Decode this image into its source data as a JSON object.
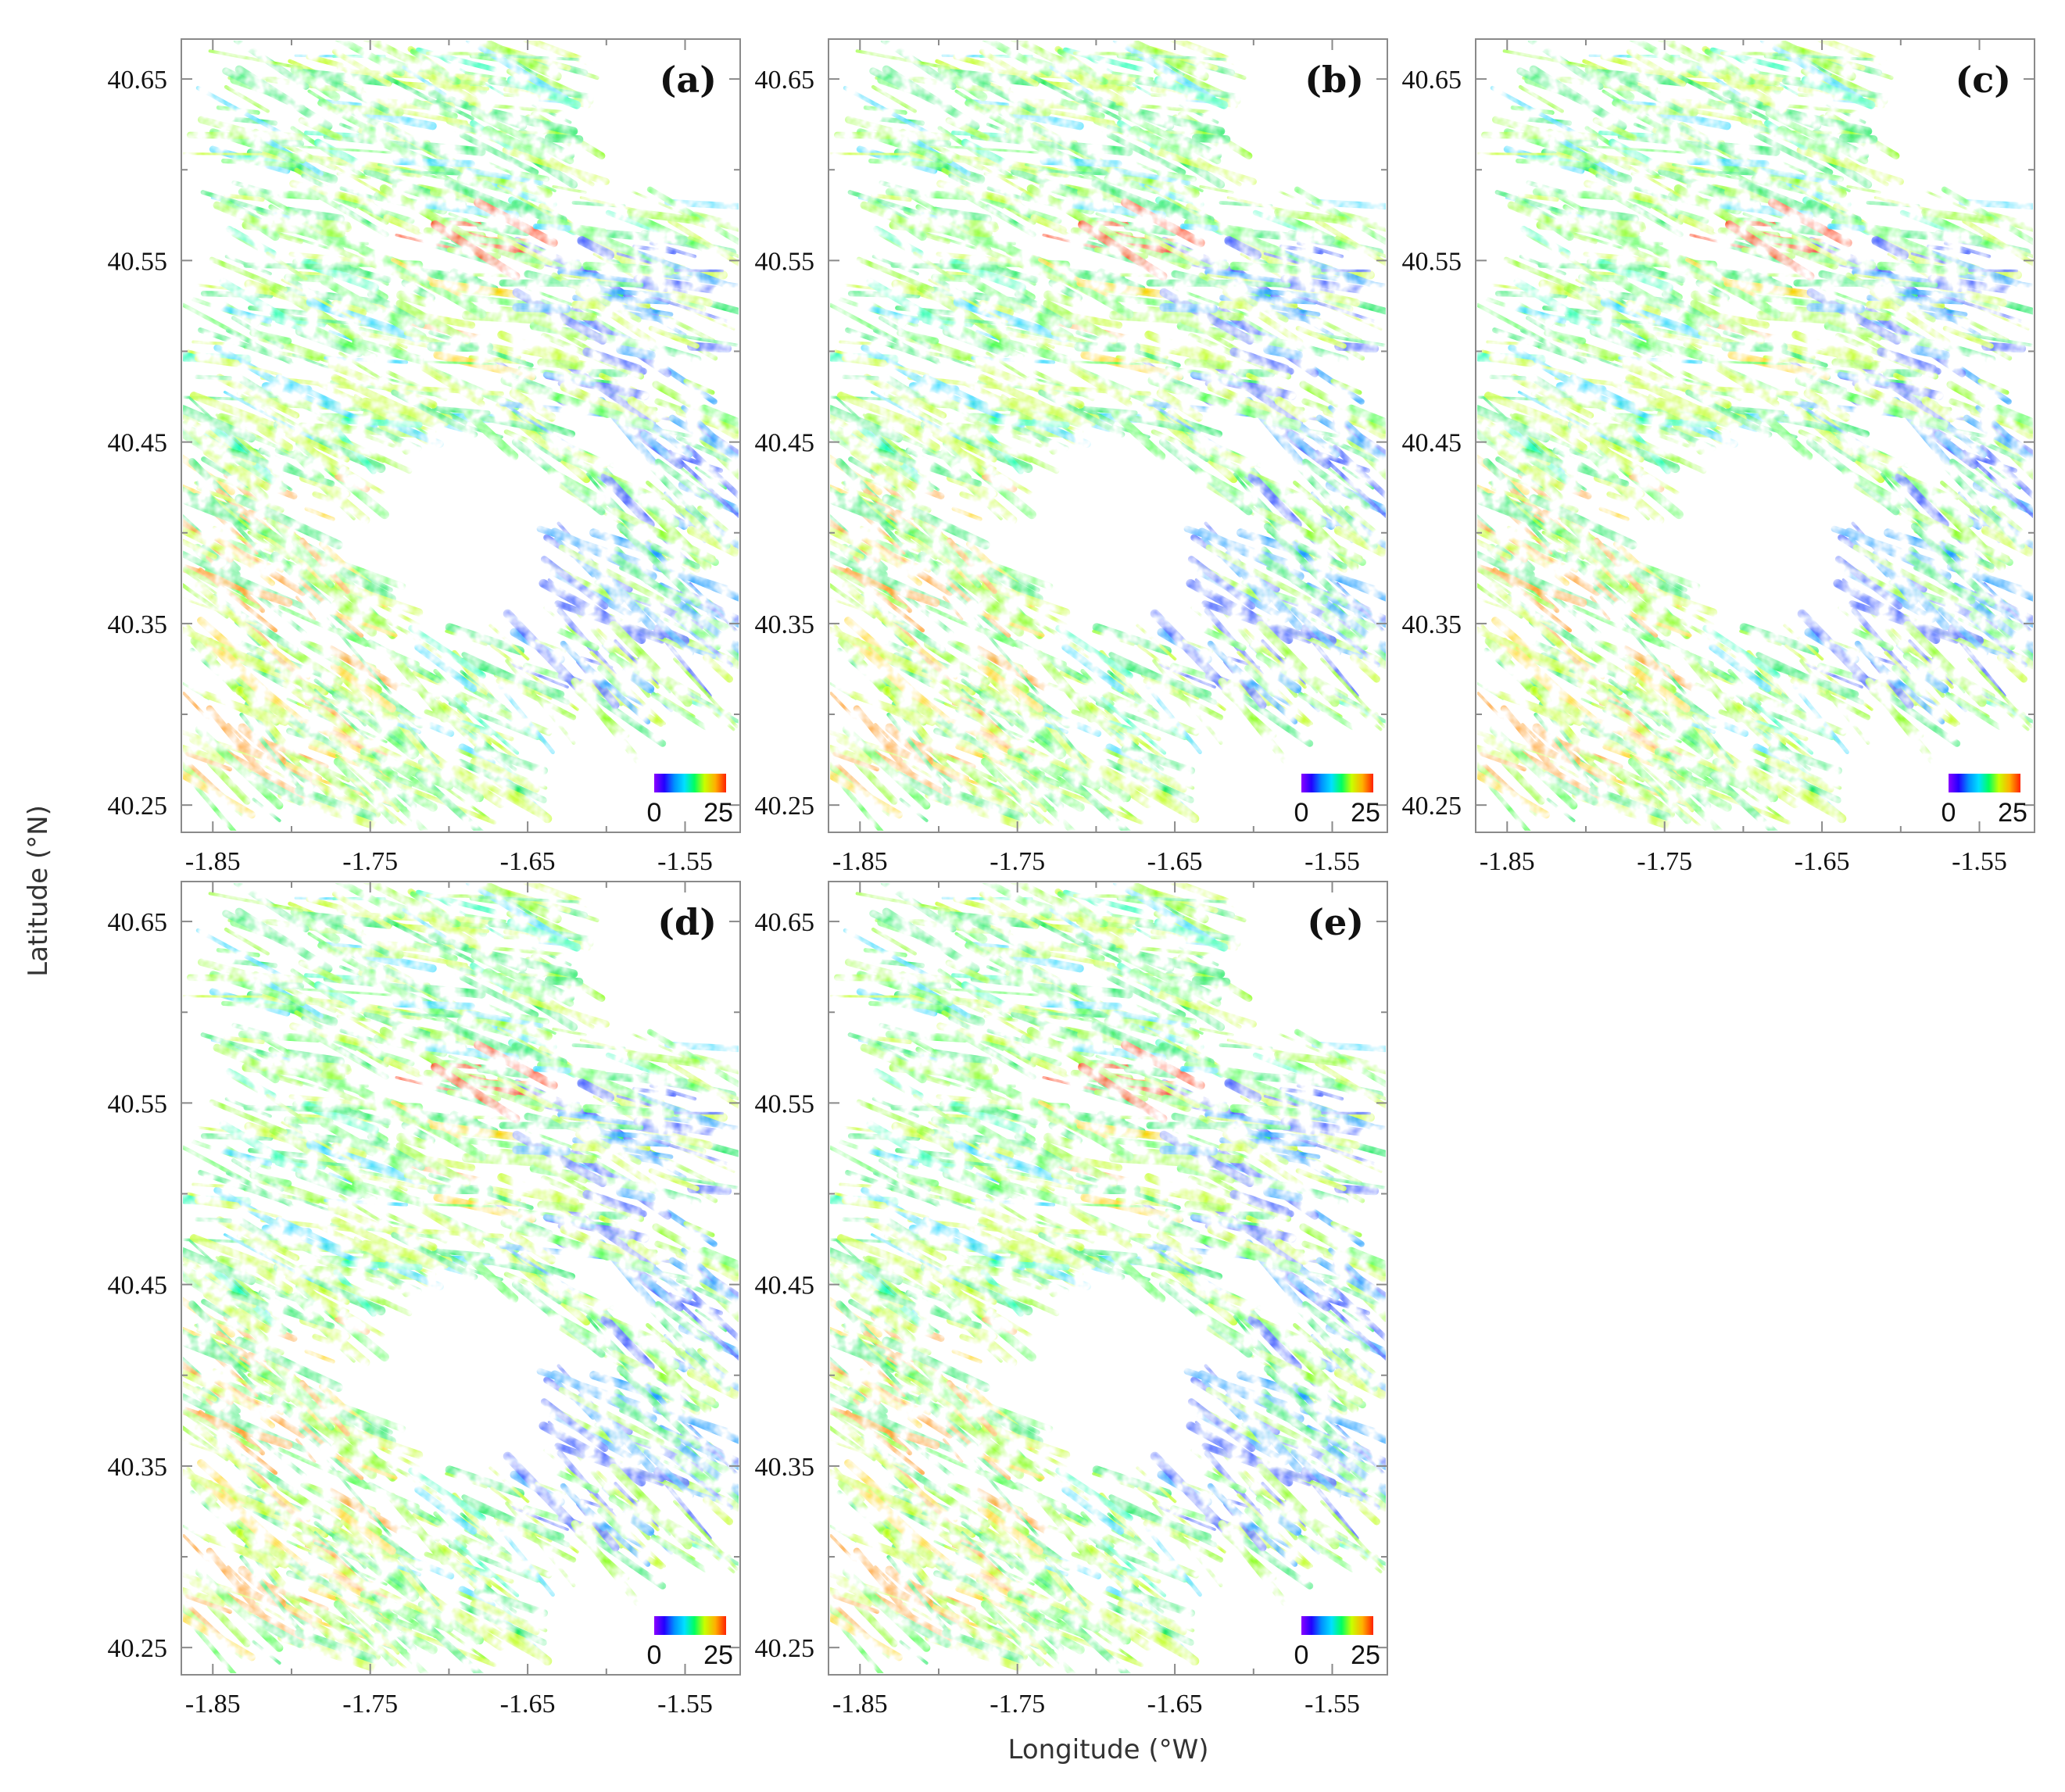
{
  "figure": {
    "x_axis_title": "Longitude (°W)",
    "y_axis_title": "Latitude (°N)"
  },
  "map": {
    "longitude_ticks": [
      "-1.85",
      "-1.75",
      "-1.65",
      "-1.55"
    ],
    "latitude_ticks": [
      "40.65",
      "40.55",
      "40.45",
      "40.35",
      "40.25"
    ],
    "extent": {
      "lon_min": -1.87,
      "lon_max": -1.515,
      "lat_min": 40.235,
      "lat_max": 40.672
    },
    "colorbar": {
      "min_label": "0",
      "max_label": "25",
      "colors": [
        "#8a00ff",
        "#2200ff",
        "#0090ff",
        "#00e0ff",
        "#00ff60",
        "#c8ff00",
        "#ffb000",
        "#ff2000"
      ]
    },
    "panels": [
      {
        "label": "(a)"
      },
      {
        "label": "(b)"
      },
      {
        "label": "(c)"
      },
      {
        "label": "(d)"
      },
      {
        "label": "(e)"
      }
    ]
  }
}
